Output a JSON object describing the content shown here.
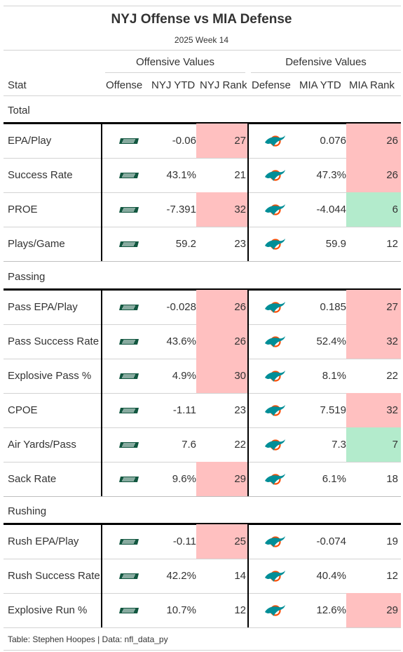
{
  "title": "NYJ Offense vs MIA Defense",
  "subtitle": "2025 Week 14",
  "spanners": {
    "offense": "Offensive Values",
    "defense": "Defensive Values"
  },
  "columns": {
    "stat": "Stat",
    "offense": "Offense",
    "nyj_ytd": "NYJ YTD",
    "nyj_rank": "NYJ Rank",
    "defense": "Defense",
    "mia_ytd": "MIA YTD",
    "mia_rank": "MIA Rank"
  },
  "footer": "Table: Stephen Hoopes | Data: nfl_data_py",
  "colors": {
    "bad_rank": "#ffc0c0",
    "good_rank": "#b3ebcc",
    "jets_green": "#125740",
    "dolphins_aqua": "#008e97",
    "dolphins_orange": "#fc4c02"
  },
  "icons": {
    "offense": "jets-logo",
    "defense": "dolphins-logo"
  },
  "chart_data": {
    "type": "table",
    "groups": [
      {
        "label": "Total",
        "rows": [
          {
            "stat": "EPA/Play",
            "nyj_ytd": "-0.06",
            "nyj_rank": "27",
            "nyj_color": "bad",
            "mia_ytd": "0.076",
            "mia_rank": "26",
            "mia_color": "bad"
          },
          {
            "stat": "Success Rate",
            "nyj_ytd": "43.1%",
            "nyj_rank": "21",
            "nyj_color": "",
            "mia_ytd": "47.3%",
            "mia_rank": "26",
            "mia_color": "bad"
          },
          {
            "stat": "PROE",
            "nyj_ytd": "-7.391",
            "nyj_rank": "32",
            "nyj_color": "bad",
            "mia_ytd": "-4.044",
            "mia_rank": "6",
            "mia_color": "good"
          },
          {
            "stat": "Plays/Game",
            "nyj_ytd": "59.2",
            "nyj_rank": "23",
            "nyj_color": "",
            "mia_ytd": "59.9",
            "mia_rank": "12",
            "mia_color": ""
          }
        ]
      },
      {
        "label": "Passing",
        "rows": [
          {
            "stat": "Pass EPA/Play",
            "nyj_ytd": "-0.028",
            "nyj_rank": "26",
            "nyj_color": "bad",
            "mia_ytd": "0.185",
            "mia_rank": "27",
            "mia_color": "bad"
          },
          {
            "stat": "Pass Success Rate",
            "nyj_ytd": "43.6%",
            "nyj_rank": "26",
            "nyj_color": "bad",
            "mia_ytd": "52.4%",
            "mia_rank": "32",
            "mia_color": "bad"
          },
          {
            "stat": "Explosive Pass %",
            "nyj_ytd": "4.9%",
            "nyj_rank": "30",
            "nyj_color": "bad",
            "mia_ytd": "8.1%",
            "mia_rank": "22",
            "mia_color": ""
          },
          {
            "stat": "CPOE",
            "nyj_ytd": "-1.11",
            "nyj_rank": "23",
            "nyj_color": "",
            "mia_ytd": "7.519",
            "mia_rank": "32",
            "mia_color": "bad"
          },
          {
            "stat": "Air Yards/Pass",
            "nyj_ytd": "7.6",
            "nyj_rank": "22",
            "nyj_color": "",
            "mia_ytd": "7.3",
            "mia_rank": "7",
            "mia_color": "good"
          },
          {
            "stat": "Sack Rate",
            "nyj_ytd": "9.6%",
            "nyj_rank": "29",
            "nyj_color": "bad",
            "mia_ytd": "6.1%",
            "mia_rank": "18",
            "mia_color": ""
          }
        ]
      },
      {
        "label": "Rushing",
        "rows": [
          {
            "stat": "Rush EPA/Play",
            "nyj_ytd": "-0.11",
            "nyj_rank": "25",
            "nyj_color": "bad",
            "mia_ytd": "-0.074",
            "mia_rank": "19",
            "mia_color": ""
          },
          {
            "stat": "Rush Success Rate",
            "nyj_ytd": "42.2%",
            "nyj_rank": "14",
            "nyj_color": "",
            "mia_ytd": "40.4%",
            "mia_rank": "12",
            "mia_color": ""
          },
          {
            "stat": "Explosive Run %",
            "nyj_ytd": "10.7%",
            "nyj_rank": "12",
            "nyj_color": "",
            "mia_ytd": "12.6%",
            "mia_rank": "29",
            "mia_color": "bad"
          }
        ]
      }
    ]
  }
}
